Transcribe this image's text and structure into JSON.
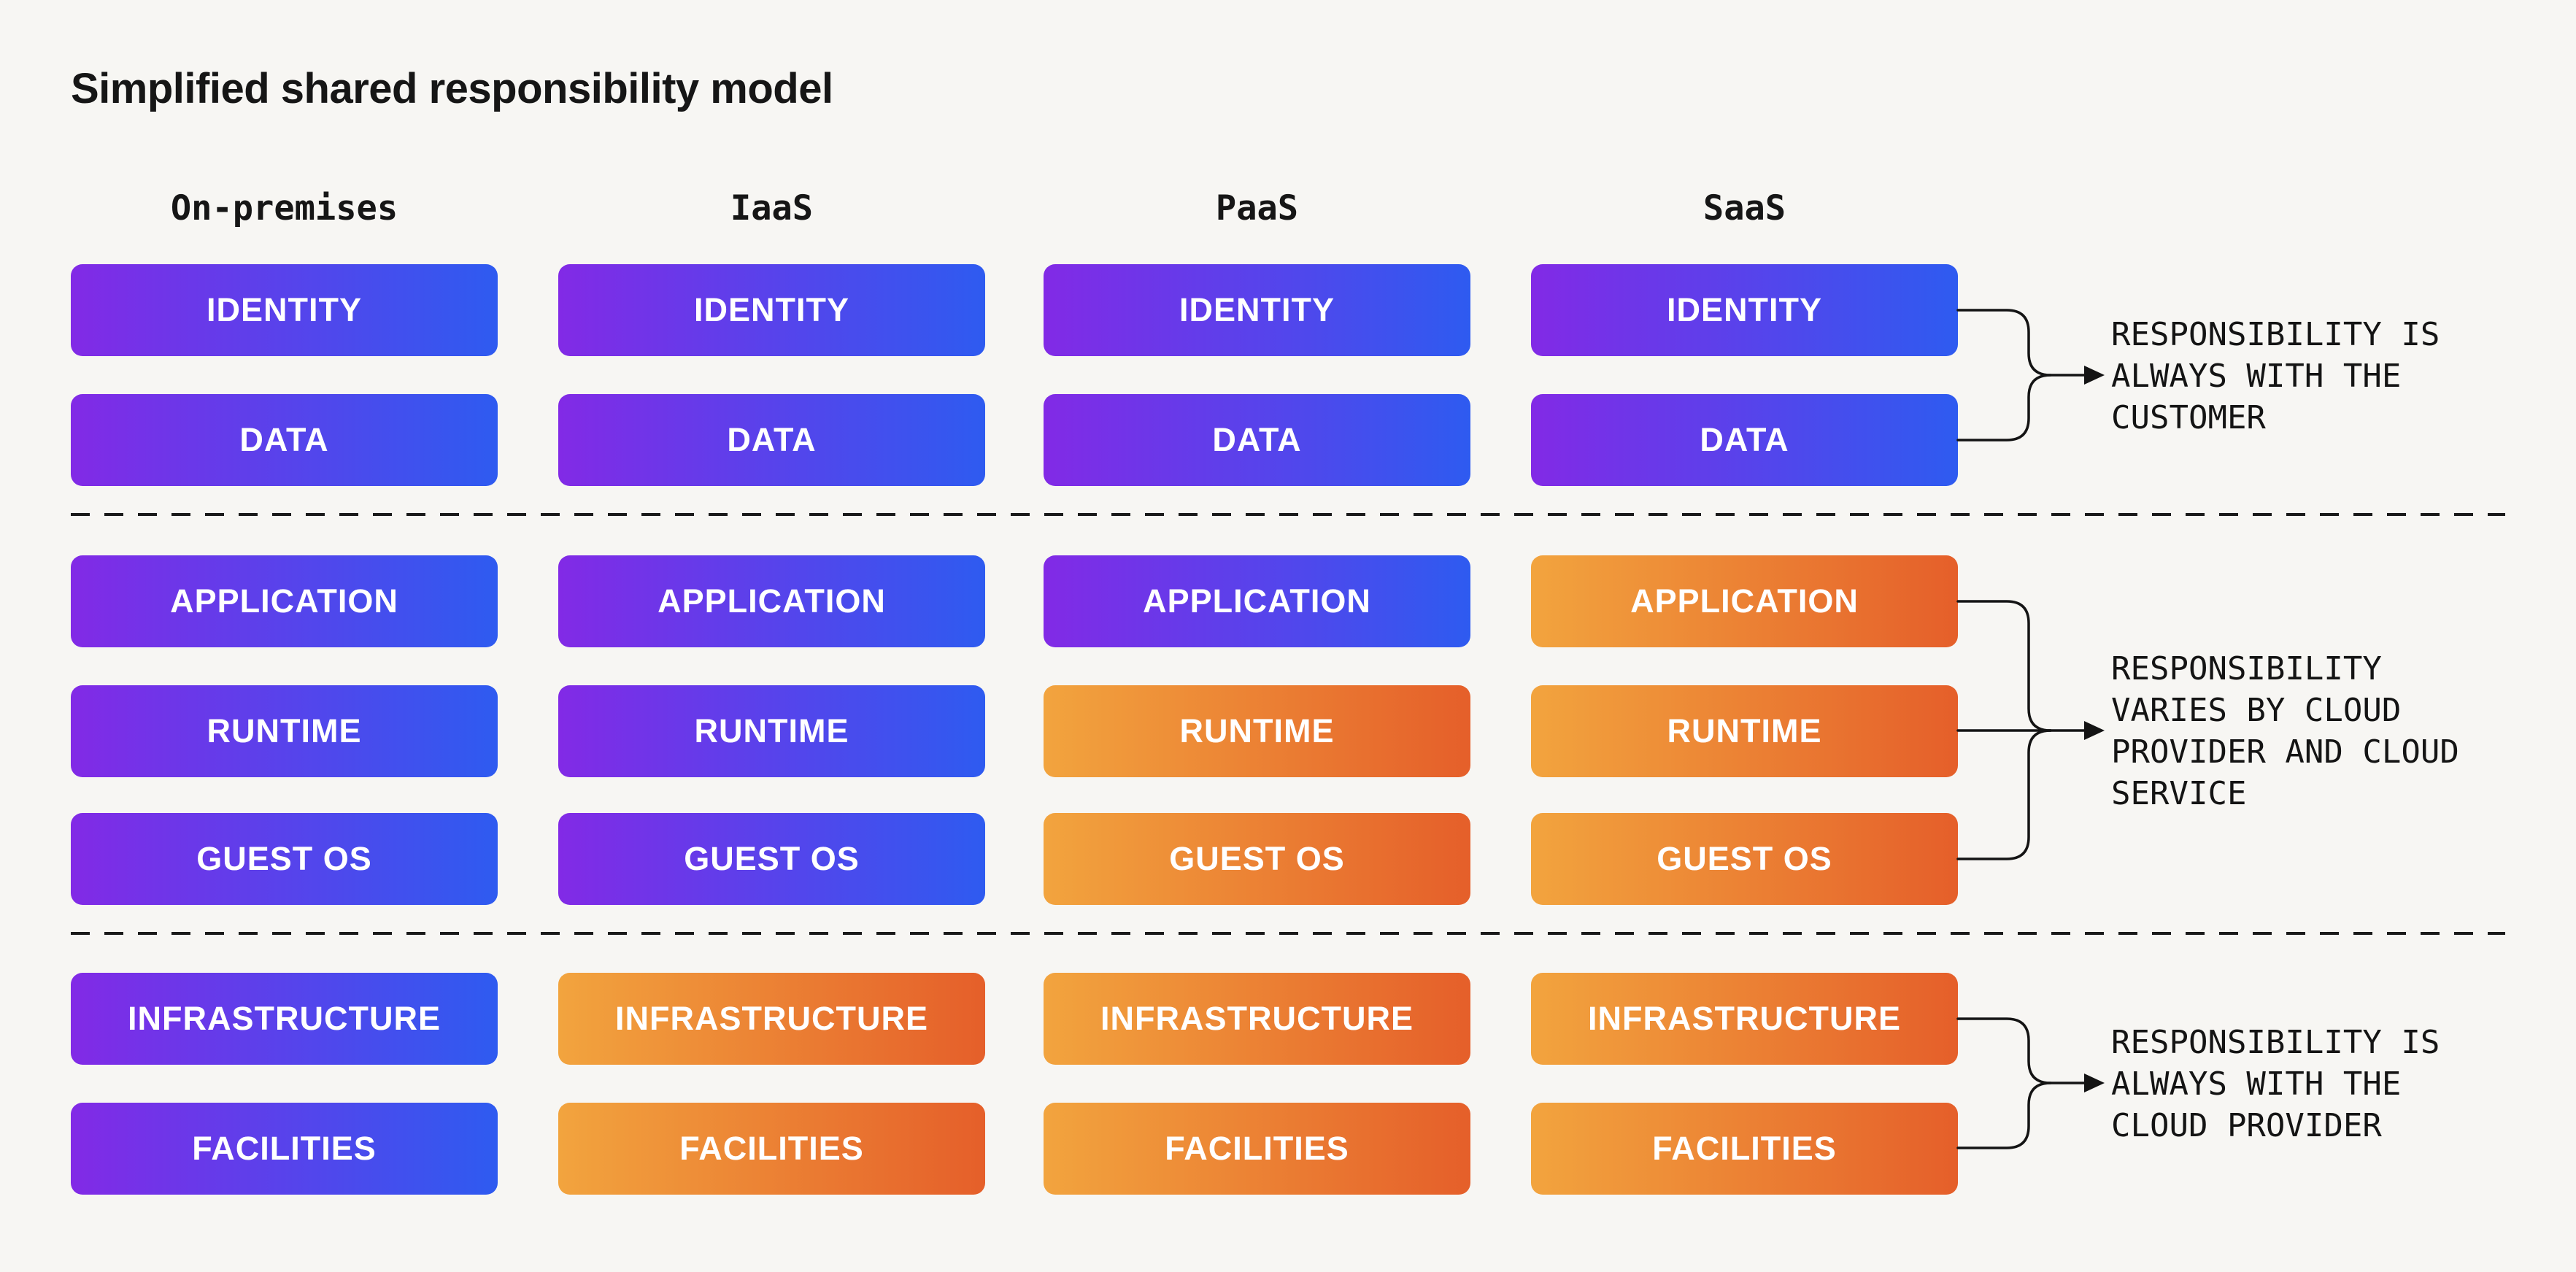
{
  "title": "Simplified shared responsibility model",
  "colors": {
    "customer": {
      "from": "#822ae6",
      "to": "#2e5bf0"
    },
    "provider": {
      "from": "#f2a43e",
      "to": "#e55f2a"
    }
  },
  "row_labels": [
    "IDENTITY",
    "DATA",
    "APPLICATION",
    "RUNTIME",
    "GUEST OS",
    "INFRASTRUCTURE",
    "FACILITIES"
  ],
  "columns": [
    {
      "label": "On-premises",
      "boxes": [
        {
          "label": "IDENTITY",
          "owner": "customer"
        },
        {
          "label": "DATA",
          "owner": "customer"
        },
        {
          "label": "APPLICATION",
          "owner": "customer"
        },
        {
          "label": "RUNTIME",
          "owner": "customer"
        },
        {
          "label": "GUEST OS",
          "owner": "customer"
        },
        {
          "label": "INFRASTRUCTURE",
          "owner": "customer"
        },
        {
          "label": "FACILITIES",
          "owner": "customer"
        }
      ]
    },
    {
      "label": "IaaS",
      "boxes": [
        {
          "label": "IDENTITY",
          "owner": "customer"
        },
        {
          "label": "DATA",
          "owner": "customer"
        },
        {
          "label": "APPLICATION",
          "owner": "customer"
        },
        {
          "label": "RUNTIME",
          "owner": "customer"
        },
        {
          "label": "GUEST OS",
          "owner": "customer"
        },
        {
          "label": "INFRASTRUCTURE",
          "owner": "provider"
        },
        {
          "label": "FACILITIES",
          "owner": "provider"
        }
      ]
    },
    {
      "label": "PaaS",
      "boxes": [
        {
          "label": "IDENTITY",
          "owner": "customer"
        },
        {
          "label": "DATA",
          "owner": "customer"
        },
        {
          "label": "APPLICATION",
          "owner": "customer"
        },
        {
          "label": "RUNTIME",
          "owner": "provider"
        },
        {
          "label": "GUEST OS",
          "owner": "provider"
        },
        {
          "label": "INFRASTRUCTURE",
          "owner": "provider"
        },
        {
          "label": "FACILITIES",
          "owner": "provider"
        }
      ]
    },
    {
      "label": "SaaS",
      "boxes": [
        {
          "label": "IDENTITY",
          "owner": "customer"
        },
        {
          "label": "DATA",
          "owner": "customer"
        },
        {
          "label": "APPLICATION",
          "owner": "provider"
        },
        {
          "label": "RUNTIME",
          "owner": "provider"
        },
        {
          "label": "GUEST OS",
          "owner": "provider"
        },
        {
          "label": "INFRASTRUCTURE",
          "owner": "provider"
        },
        {
          "label": "FACILITIES",
          "owner": "provider"
        }
      ]
    }
  ],
  "annotations": [
    {
      "lines": [
        "RESPONSIBILITY IS",
        "ALWAYS WITH THE",
        "CUSTOMER"
      ]
    },
    {
      "lines": [
        "RESPONSIBILITY",
        "VARIES BY CLOUD",
        "PROVIDER AND CLOUD",
        "SERVICE"
      ]
    },
    {
      "lines": [
        "RESPONSIBILITY IS",
        "ALWAYS WITH THE",
        "CLOUD PROVIDER"
      ]
    }
  ]
}
